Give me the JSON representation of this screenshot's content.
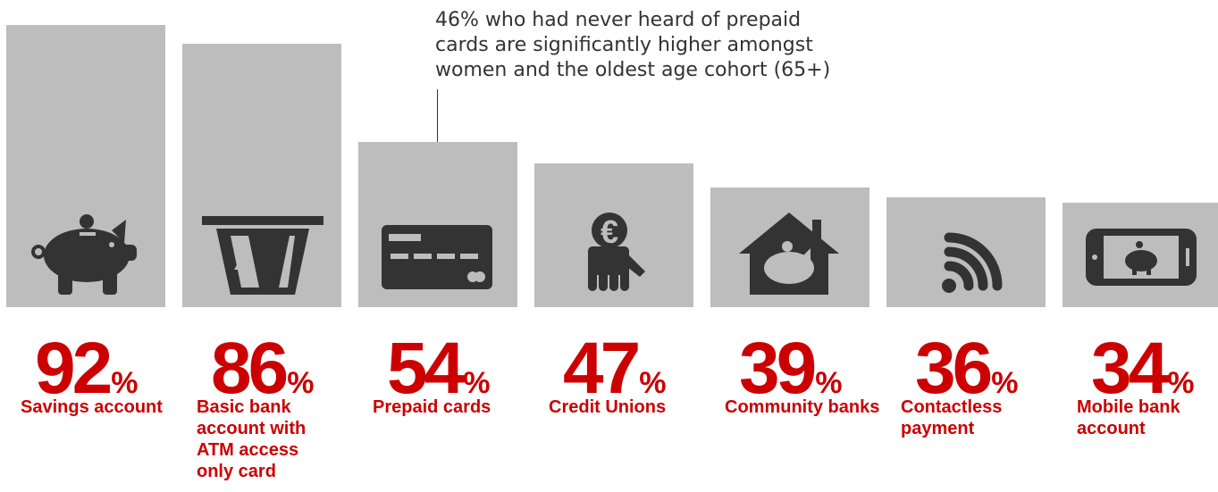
{
  "chart_data": {
    "type": "bar",
    "categories": [
      "Savings account",
      "Basic bank account with ATM access only card",
      "Prepaid cards",
      "Credit Unions",
      "Community banks",
      "Contactless payment",
      "Mobile bank account"
    ],
    "values": [
      92,
      86,
      54,
      47,
      39,
      36,
      34
    ],
    "value_suffix": "%",
    "icons": [
      "piggy-bank-icon",
      "atm-card-icon",
      "credit-card-icon",
      "hand-euro-icon",
      "house-piggy-bank-icon",
      "contactless-icon",
      "mobile-piggy-bank-icon"
    ],
    "annotation": {
      "text": "46% who had never heard of prepaid cards are significantly higher amongst women and the oldest age cohort (65+)",
      "target_category": "Prepaid cards"
    },
    "ylim": [
      0,
      100
    ],
    "grid": false,
    "legend": "none"
  },
  "colors": {
    "bar": "#bdbdbd",
    "icon": "#333333",
    "accent": "#cc0000"
  }
}
